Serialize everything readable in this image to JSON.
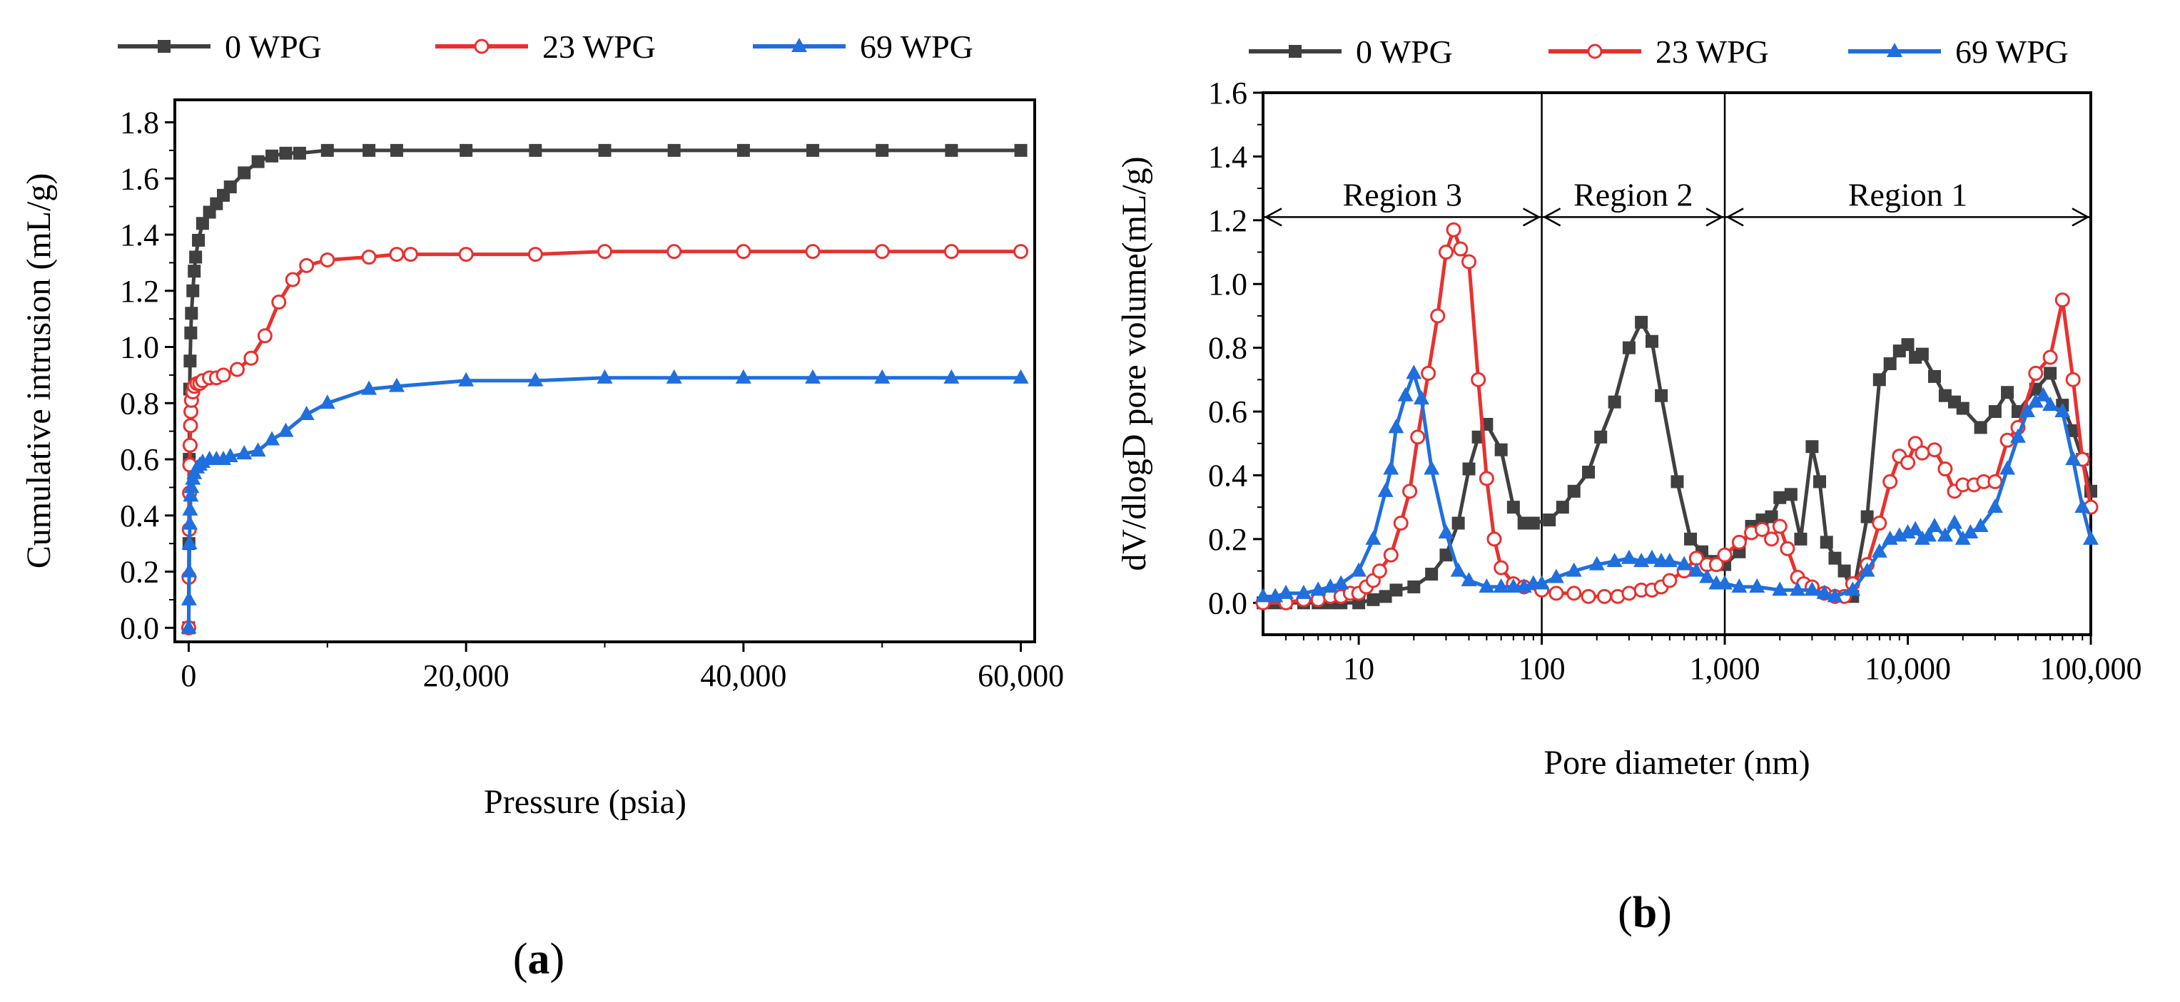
{
  "figure": {
    "panels": [
      {
        "label_open": "(",
        "label_letter": "a",
        "label_close": ")"
      },
      {
        "label_open": "(",
        "label_letter": "b",
        "label_close": ")"
      }
    ]
  },
  "chart_data": [
    {
      "type": "line",
      "xlabel": "Pressure (psia)",
      "ylabel": "Cumulative intrusion (mL/g)",
      "xlim": [
        -1000,
        61000
      ],
      "ylim": [
        -0.05,
        1.88
      ],
      "xticks": [
        0,
        20000,
        40000,
        60000
      ],
      "xtick_labels": [
        "0",
        "20,000",
        "40,000",
        "60,000"
      ],
      "yticks": [
        0.0,
        0.2,
        0.4,
        0.6,
        0.8,
        1.0,
        1.2,
        1.4,
        1.6,
        1.8
      ],
      "ytick_labels": [
        "0.0",
        "0.2",
        "0.4",
        "0.6",
        "0.8",
        "1.0",
        "1.2",
        "1.4",
        "1.6",
        "1.8"
      ],
      "legend_position": "top",
      "series": [
        {
          "name": "0 WPG",
          "color": "#404040",
          "marker": "square",
          "x": [
            0,
            20,
            40,
            70,
            100,
            150,
            200,
            300,
            400,
            500,
            700,
            1000,
            1500,
            2000,
            2500,
            3000,
            4000,
            5000,
            6000,
            7000,
            8000,
            10000,
            13000,
            15000,
            20000,
            25000,
            30000,
            35000,
            40000,
            45000,
            50000,
            55000,
            60000
          ],
          "y": [
            0.0,
            0.3,
            0.6,
            0.85,
            0.95,
            1.05,
            1.12,
            1.2,
            1.27,
            1.32,
            1.38,
            1.44,
            1.48,
            1.51,
            1.54,
            1.57,
            1.62,
            1.66,
            1.68,
            1.69,
            1.69,
            1.7,
            1.7,
            1.7,
            1.7,
            1.7,
            1.7,
            1.7,
            1.7,
            1.7,
            1.7,
            1.7,
            1.7
          ]
        },
        {
          "name": "23 WPG",
          "color": "#e8312f",
          "marker": "open-circle",
          "x": [
            0,
            20,
            40,
            60,
            80,
            100,
            130,
            160,
            200,
            300,
            400,
            600,
            800,
            1000,
            1500,
            2000,
            2500,
            3500,
            4500,
            5500,
            6500,
            7500,
            8500,
            10000,
            13000,
            15000,
            16000,
            20000,
            25000,
            30000,
            35000,
            40000,
            45000,
            50000,
            55000,
            60000
          ],
          "y": [
            0.0,
            0.18,
            0.35,
            0.48,
            0.58,
            0.65,
            0.72,
            0.77,
            0.81,
            0.84,
            0.86,
            0.87,
            0.87,
            0.88,
            0.89,
            0.89,
            0.9,
            0.92,
            0.96,
            1.04,
            1.16,
            1.24,
            1.29,
            1.31,
            1.32,
            1.33,
            1.33,
            1.33,
            1.33,
            1.34,
            1.34,
            1.34,
            1.34,
            1.34,
            1.34,
            1.34
          ]
        },
        {
          "name": "69 WPG",
          "color": "#1f6fde",
          "marker": "triangle",
          "x": [
            0,
            20,
            40,
            60,
            80,
            100,
            150,
            200,
            300,
            400,
            600,
            800,
            1000,
            1500,
            2000,
            2500,
            3000,
            4000,
            5000,
            6000,
            7000,
            8500,
            10000,
            13000,
            15000,
            20000,
            25000,
            30000,
            35000,
            40000,
            45000,
            50000,
            55000,
            60000
          ],
          "y": [
            0.0,
            0.1,
            0.2,
            0.3,
            0.37,
            0.42,
            0.47,
            0.5,
            0.53,
            0.55,
            0.57,
            0.58,
            0.59,
            0.6,
            0.6,
            0.6,
            0.61,
            0.62,
            0.63,
            0.67,
            0.7,
            0.76,
            0.8,
            0.85,
            0.86,
            0.88,
            0.88,
            0.89,
            0.89,
            0.89,
            0.89,
            0.89,
            0.89,
            0.89
          ]
        }
      ]
    },
    {
      "type": "line",
      "x_scale": "log",
      "xlabel": "Pore diameter (nm)",
      "ylabel": "dV/dlogD pore volume(mL/g)",
      "xlim": [
        3,
        100000
      ],
      "ylim": [
        -0.1,
        1.6
      ],
      "xticks": [
        10,
        100,
        1000,
        10000,
        100000
      ],
      "xtick_labels": [
        "10",
        "100",
        "1,000",
        "10,000",
        "100,000"
      ],
      "yticks": [
        0.0,
        0.2,
        0.4,
        0.6,
        0.8,
        1.0,
        1.2,
        1.4,
        1.6
      ],
      "ytick_labels": [
        "0.0",
        "0.2",
        "0.4",
        "0.6",
        "0.8",
        "1.0",
        "1.2",
        "1.4",
        "1.6"
      ],
      "legend_position": "top",
      "region_boundaries": [
        100,
        1000
      ],
      "region_arrow_y": 1.21,
      "regions": [
        {
          "label": "Region 3",
          "from": 3,
          "to": 100
        },
        {
          "label": "Region 2",
          "from": 100,
          "to": 1000
        },
        {
          "label": "Region 1",
          "from": 1000,
          "to": 100000
        }
      ],
      "series": [
        {
          "name": "0 WPG",
          "color": "#404040",
          "marker": "square",
          "x": [
            3,
            3.5,
            4,
            5,
            6,
            7,
            8,
            10,
            12,
            14,
            16,
            20,
            25,
            30,
            35,
            40,
            45,
            50,
            60,
            70,
            80,
            90,
            110,
            130,
            150,
            180,
            210,
            250,
            300,
            350,
            400,
            450,
            550,
            650,
            750,
            850,
            1000,
            1200,
            1400,
            1600,
            1800,
            2000,
            2300,
            2600,
            3000,
            3300,
            3600,
            4000,
            4500,
            5000,
            6000,
            7000,
            8000,
            9000,
            10000,
            11000,
            12000,
            14000,
            16000,
            18000,
            20000,
            25000,
            30000,
            35000,
            40000,
            50000,
            60000,
            70000,
            80000,
            90000,
            100000
          ],
          "y": [
            0.0,
            0.0,
            0.0,
            0.0,
            0.0,
            0.0,
            0.0,
            0.0,
            0.01,
            0.02,
            0.04,
            0.05,
            0.09,
            0.15,
            0.25,
            0.42,
            0.52,
            0.56,
            0.48,
            0.3,
            0.25,
            0.25,
            0.26,
            0.3,
            0.35,
            0.41,
            0.52,
            0.63,
            0.8,
            0.88,
            0.82,
            0.65,
            0.38,
            0.2,
            0.16,
            0.13,
            0.12,
            0.16,
            0.24,
            0.26,
            0.27,
            0.33,
            0.34,
            0.2,
            0.49,
            0.38,
            0.19,
            0.14,
            0.1,
            0.02,
            0.27,
            0.7,
            0.75,
            0.79,
            0.81,
            0.77,
            0.78,
            0.71,
            0.65,
            0.63,
            0.61,
            0.55,
            0.6,
            0.66,
            0.6,
            0.67,
            0.72,
            0.62,
            0.54,
            0.45,
            0.35
          ]
        },
        {
          "name": "23 WPG",
          "color": "#e8312f",
          "marker": "open-circle",
          "x": [
            3,
            4,
            5,
            6,
            7,
            8,
            9,
            10,
            11,
            12,
            13,
            15,
            17,
            19,
            21,
            24,
            27,
            30,
            33,
            36,
            40,
            45,
            50,
            55,
            60,
            70,
            80,
            100,
            120,
            150,
            180,
            220,
            260,
            300,
            350,
            400,
            450,
            500,
            600,
            700,
            800,
            900,
            1000,
            1200,
            1400,
            1600,
            1800,
            2000,
            2200,
            2500,
            2700,
            3000,
            3500,
            4000,
            4500,
            5000,
            6000,
            7000,
            8000,
            9000,
            10000,
            11000,
            12000,
            14000,
            16000,
            18000,
            20000,
            23000,
            26000,
            30000,
            35000,
            40000,
            50000,
            60000,
            70000,
            80000,
            90000,
            100000
          ],
          "y": [
            0.0,
            0.0,
            0.01,
            0.01,
            0.02,
            0.02,
            0.03,
            0.03,
            0.05,
            0.07,
            0.1,
            0.15,
            0.25,
            0.35,
            0.52,
            0.72,
            0.9,
            1.1,
            1.17,
            1.11,
            1.07,
            0.7,
            0.39,
            0.2,
            0.11,
            0.06,
            0.05,
            0.04,
            0.03,
            0.03,
            0.02,
            0.02,
            0.02,
            0.03,
            0.04,
            0.04,
            0.05,
            0.07,
            0.1,
            0.14,
            0.12,
            0.12,
            0.15,
            0.19,
            0.22,
            0.23,
            0.2,
            0.24,
            0.17,
            0.08,
            0.06,
            0.05,
            0.03,
            0.02,
            0.02,
            0.06,
            0.12,
            0.25,
            0.38,
            0.46,
            0.44,
            0.5,
            0.47,
            0.48,
            0.42,
            0.35,
            0.37,
            0.37,
            0.38,
            0.38,
            0.51,
            0.55,
            0.72,
            0.77,
            0.95,
            0.7,
            0.45,
            0.3
          ]
        },
        {
          "name": "69 WPG",
          "color": "#1f6fde",
          "marker": "triangle",
          "x": [
            3,
            3.5,
            4,
            5,
            6,
            7,
            8,
            10,
            12,
            14,
            15,
            16,
            18,
            20,
            22,
            25,
            30,
            35,
            40,
            50,
            60,
            70,
            80,
            90,
            100,
            120,
            150,
            200,
            250,
            300,
            350,
            400,
            450,
            500,
            600,
            700,
            800,
            900,
            1000,
            1200,
            1500,
            2000,
            2500,
            3000,
            3500,
            4000,
            5000,
            6000,
            7000,
            8000,
            9000,
            10000,
            11000,
            12000,
            13000,
            14000,
            16000,
            18000,
            20000,
            22000,
            25000,
            30000,
            35000,
            40000,
            45000,
            50000,
            55000,
            60000,
            70000,
            80000,
            90000,
            100000
          ],
          "y": [
            0.02,
            0.02,
            0.03,
            0.03,
            0.04,
            0.05,
            0.06,
            0.1,
            0.2,
            0.35,
            0.42,
            0.55,
            0.65,
            0.72,
            0.64,
            0.42,
            0.22,
            0.1,
            0.07,
            0.05,
            0.05,
            0.05,
            0.05,
            0.06,
            0.06,
            0.08,
            0.1,
            0.12,
            0.13,
            0.14,
            0.13,
            0.14,
            0.13,
            0.13,
            0.12,
            0.1,
            0.08,
            0.06,
            0.06,
            0.05,
            0.05,
            0.04,
            0.04,
            0.04,
            0.03,
            0.02,
            0.04,
            0.1,
            0.16,
            0.2,
            0.21,
            0.22,
            0.23,
            0.2,
            0.21,
            0.24,
            0.21,
            0.25,
            0.2,
            0.22,
            0.24,
            0.3,
            0.42,
            0.52,
            0.6,
            0.63,
            0.65,
            0.62,
            0.6,
            0.45,
            0.3,
            0.2
          ]
        }
      ]
    }
  ]
}
